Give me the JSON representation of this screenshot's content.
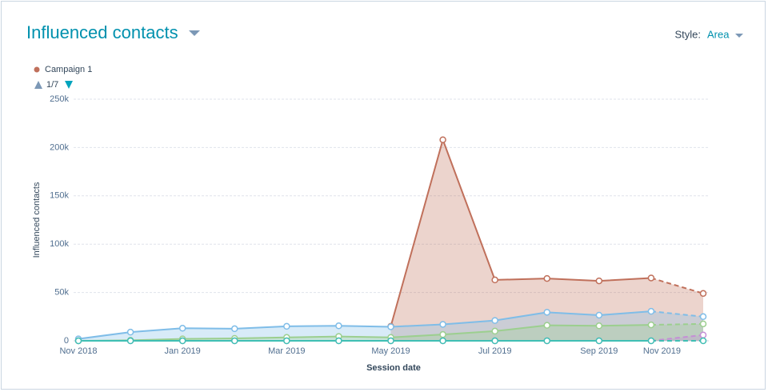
{
  "ui": {
    "style_label": "Style:",
    "style_value": "Area",
    "pager": "1/7"
  },
  "chart_data": {
    "type": "area",
    "title": "Influenced contacts",
    "x_label": "Session date",
    "y_label": "Influenced contacts",
    "categories": [
      "Nov 2018",
      null,
      "Jan 2019",
      null,
      "Mar 2019",
      null,
      "May 2019",
      null,
      "Jul 2019",
      null,
      "Sep 2019",
      null,
      "Nov 2019"
    ],
    "ylim": [
      0,
      250000
    ],
    "yticks": [
      0,
      {
        "value": 50000,
        "label": "50k"
      },
      {
        "value": 100000,
        "label": "100k"
      },
      {
        "value": 150000,
        "label": "150k"
      },
      {
        "value": 200000,
        "label": "200k"
      },
      {
        "value": 250000,
        "label": "250k"
      }
    ],
    "grid": true,
    "last_segment_dashed": true,
    "series": [
      {
        "name": "Campaign 1",
        "color": "#c0705b",
        "values": [
          null,
          null,
          null,
          null,
          null,
          null,
          15000,
          208000,
          63000,
          64500,
          62000,
          65000,
          49000
        ]
      },
      {
        "color": "#7fbde8",
        "values": [
          2000,
          9000,
          13000,
          12500,
          15000,
          15500,
          14500,
          17000,
          21000,
          29500,
          26500,
          30500,
          25000
        ]
      },
      {
        "color": "#9ccf8f",
        "values": [
          0,
          500,
          2000,
          2500,
          3500,
          4500,
          3500,
          6500,
          10000,
          16000,
          15500,
          16500,
          17500
        ]
      },
      {
        "color": "#c58fd6",
        "values": [
          0,
          0,
          0,
          0,
          0,
          0,
          0,
          0,
          0,
          0,
          0,
          0,
          6000
        ]
      },
      {
        "color": "#3fbfb4",
        "values": [
          0,
          0,
          0,
          0,
          0,
          0,
          0,
          0,
          0,
          0,
          0,
          0,
          0
        ]
      }
    ]
  }
}
